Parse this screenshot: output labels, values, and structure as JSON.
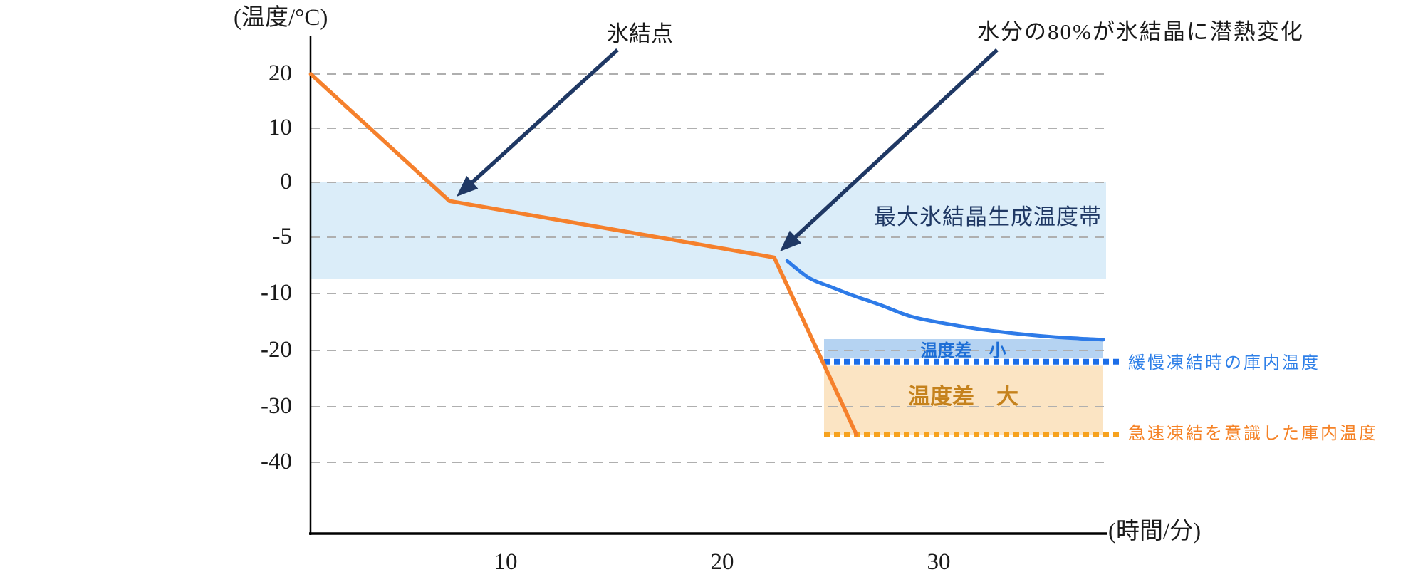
{
  "axis": {
    "y_title": "(温度/°C)",
    "x_title": "(時間/分)",
    "y_ticks": [
      "20",
      "10",
      "0",
      "-5",
      "-10",
      "-20",
      "-30",
      "-40"
    ],
    "x_ticks": [
      "10",
      "20",
      "30"
    ]
  },
  "annotations": {
    "freezing_point": "氷結点",
    "latent_heat": "水分の80%が氷結晶に潜熱変化",
    "band_label": "最大氷結晶生成温度帯",
    "diff_small": "温度差　小",
    "diff_large": "温度差　大",
    "slow_freezer_temp": "緩慢凍結時の庫内温度",
    "rapid_freezer_temp": "急速凍結を意識した庫内温度"
  },
  "colors": {
    "rapid_curve": "#F5802C",
    "slow_curve": "#2E7BE8",
    "arrow_navy": "#1F3864",
    "band_fill": "#DBEDF9",
    "small_diff_box_fill": "#B5D3F2",
    "large_diff_box_fill": "#FBE4C3",
    "slow_ref_line": "#1C6EE8",
    "rapid_ref_line": "#F6A21E",
    "gridline": "#AFAFAF",
    "axis_line": "#000000",
    "diff_small_text": "#1D6ED6",
    "diff_large_text": "#C5821D",
    "band_text": "#1F3864",
    "slow_label_text": "#2F80E8",
    "rapid_label_text": "#F58226"
  },
  "chart_data": {
    "type": "line",
    "x_label": "(時間/分)",
    "y_label": "(温度/°C)",
    "x_ticks": [
      10,
      20,
      30
    ],
    "y_tick_values": [
      20,
      10,
      0,
      -5,
      -10,
      -20,
      -30,
      -40
    ],
    "series": [
      {
        "id": "rapid-freezing-food-temperature",
        "color": "#F5802C",
        "smooth": false,
        "points": [
          [
            1.0,
            20
          ],
          [
            7.4,
            -1.7
          ],
          [
            22.4,
            -6.8
          ],
          [
            26.2,
            -35
          ]
        ]
      },
      {
        "id": "slow-freezing-food-temperature",
        "color": "#2E7BE8",
        "smooth": true,
        "points": [
          [
            23,
            -7.1
          ],
          [
            24,
            -8.6
          ],
          [
            25,
            -9.4
          ],
          [
            26,
            -10.3
          ],
          [
            27.3,
            -12
          ],
          [
            28.7,
            -14
          ],
          [
            30.2,
            -15.2
          ],
          [
            31.8,
            -16.2
          ],
          [
            33.5,
            -17
          ],
          [
            35.2,
            -17.6
          ],
          [
            36.5,
            -17.9
          ],
          [
            37.6,
            -18.1
          ]
        ]
      }
    ],
    "band": {
      "label": "最大氷結晶生成温度帯",
      "from": 0,
      "to": -8.7
    },
    "ref_lines": [
      {
        "label": "緩慢凍結時の庫内温度",
        "value": -22,
        "color": "#1C6EE8"
      },
      {
        "label": "急速凍結を意識した庫内温度",
        "value": -35,
        "color": "#F6A21E"
      }
    ],
    "boxes": [
      {
        "label": "温度差　小",
        "from": -18,
        "to": -22,
        "fill": "#B5D3F2"
      },
      {
        "label": "温度差　大",
        "from": -22.7,
        "to": -35,
        "fill": "#FBE4C3"
      }
    ],
    "annotations": [
      {
        "text": "氷結点",
        "points_at": [
          7.4,
          -1.7
        ]
      },
      {
        "text": "水分の80%が氷結晶に潜熱変化",
        "points_at": [
          22.4,
          -6.8
        ]
      }
    ]
  }
}
